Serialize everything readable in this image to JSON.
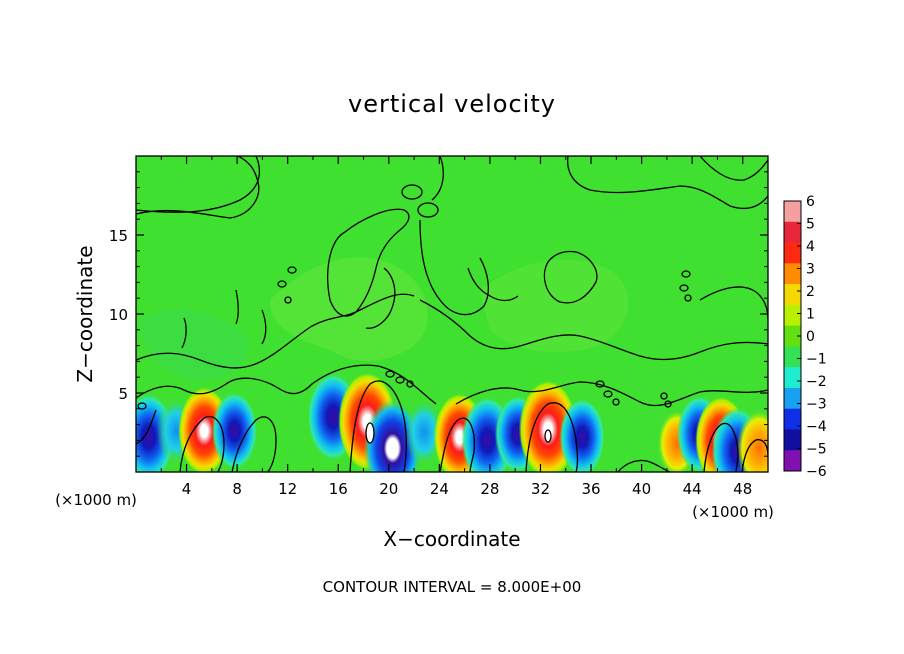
{
  "chart_data": {
    "type": "heatmap",
    "title": "vertical velocity",
    "xlabel": "X−coordinate",
    "ylabel": "Z−coordinate",
    "x_unit_left": "(×1000 m)",
    "x_unit_right": "(×1000 m)",
    "footer": "CONTOUR INTERVAL = 8.000E+00",
    "xlim": [
      0,
      50
    ],
    "ylim": [
      0,
      20
    ],
    "x_ticks": [
      4,
      8,
      12,
      16,
      20,
      24,
      28,
      32,
      36,
      40,
      44,
      48
    ],
    "y_ticks": [
      5,
      10,
      15
    ],
    "colorbar": {
      "labels": [
        "6",
        "5",
        "4",
        "3",
        "2",
        "1",
        "0",
        "−1",
        "−2",
        "−3",
        "−4",
        "−5",
        "−6"
      ],
      "colors": [
        "#f4a0a0",
        "#e8283a",
        "#ff2a10",
        "#ff8c00",
        "#f5d800",
        "#b8f000",
        "#62e010",
        "#34e054",
        "#20ecd0",
        "#1aa0f0",
        "#1030e8",
        "#1010a0",
        "#8010b0"
      ]
    },
    "background_color": "#40e030",
    "cells": [
      {
        "x": 1.0,
        "z": 2.2,
        "w": -5
      },
      {
        "x": 3.2,
        "z": 2.6,
        "w": -3
      },
      {
        "x": 5.4,
        "z": 2.6,
        "w": 5
      },
      {
        "x": 7.8,
        "z": 2.6,
        "w": -4
      },
      {
        "x": 15.6,
        "z": 3.5,
        "w": -5
      },
      {
        "x": 18.3,
        "z": 3.2,
        "w": 6
      },
      {
        "x": 20.3,
        "z": 1.5,
        "w": -6
      },
      {
        "x": 22.8,
        "z": 2.5,
        "w": -3
      },
      {
        "x": 25.6,
        "z": 2.2,
        "w": 5
      },
      {
        "x": 27.8,
        "z": 2.0,
        "w": -5
      },
      {
        "x": 30.2,
        "z": 2.4,
        "w": -4
      },
      {
        "x": 32.6,
        "z": 2.7,
        "w": 6
      },
      {
        "x": 35.3,
        "z": 2.2,
        "w": -4
      },
      {
        "x": 42.8,
        "z": 1.8,
        "w": 3
      },
      {
        "x": 44.6,
        "z": 2.4,
        "w": -4
      },
      {
        "x": 46.3,
        "z": 2.0,
        "w": 5
      },
      {
        "x": 47.6,
        "z": 1.3,
        "w": -5
      },
      {
        "x": 49.3,
        "z": 1.5,
        "w": 4
      }
    ]
  }
}
